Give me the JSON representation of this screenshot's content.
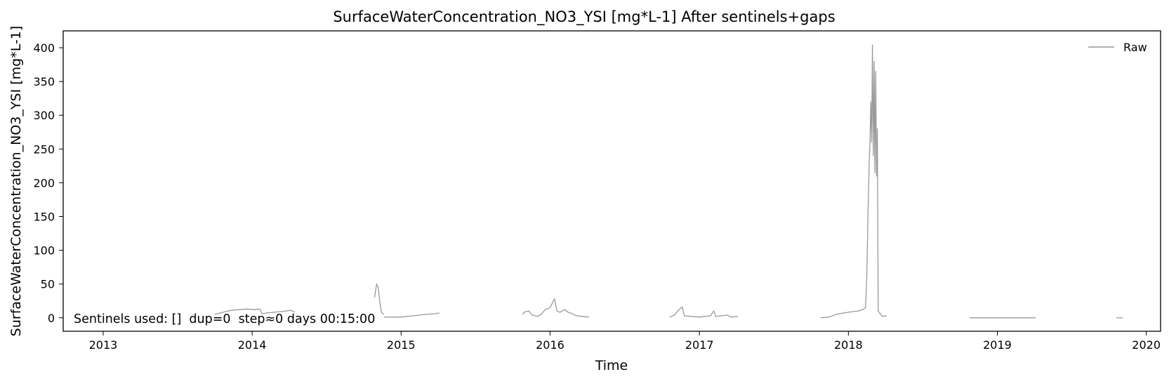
{
  "chart_data": {
    "type": "line",
    "title": "SurfaceWaterConcentration_NO3_YSI [mg*L-1] After sentinels+gaps",
    "xlabel": "Time",
    "ylabel": "SurfaceWaterConcentration_NO3_YSI [mg*L-1]",
    "xlim": [
      "2012-09-25",
      "2020-02-05"
    ],
    "ylim": [
      -20,
      425
    ],
    "xticks": [
      {
        "date": "2013-01-01",
        "label": "2013"
      },
      {
        "date": "2014-01-01",
        "label": "2014"
      },
      {
        "date": "2015-01-01",
        "label": "2015"
      },
      {
        "date": "2016-01-01",
        "label": "2016"
      },
      {
        "date": "2017-01-01",
        "label": "2017"
      },
      {
        "date": "2018-01-01",
        "label": "2018"
      },
      {
        "date": "2019-01-01",
        "label": "2019"
      },
      {
        "date": "2020-01-01",
        "label": "2020"
      }
    ],
    "yticks": [
      0,
      50,
      100,
      150,
      200,
      250,
      300,
      350,
      400
    ],
    "grid": false,
    "legend": {
      "position": "top-right",
      "entries": [
        "Raw"
      ]
    },
    "annotation": "Sentinels used: []  dup=0  step≈0 days 00:15:00",
    "colors": {
      "series": "#999999"
    },
    "series": [
      {
        "name": "Raw",
        "segments": [
          [
            [
              "2013-10-01",
              5
            ],
            [
              "2013-10-20",
              8
            ],
            [
              "2013-11-10",
              11
            ],
            [
              "2013-12-01",
              12
            ],
            [
              "2013-12-20",
              13
            ],
            [
              "2014-01-05",
              12
            ],
            [
              "2014-01-20",
              13
            ],
            [
              "2014-01-25",
              6
            ],
            [
              "2014-02-05",
              7
            ],
            [
              "2014-02-20",
              8
            ],
            [
              "2014-03-10",
              9
            ],
            [
              "2014-03-25",
              10
            ],
            [
              "2014-04-05",
              11
            ],
            [
              "2014-04-15",
              9
            ]
          ],
          [
            [
              "2014-10-28",
              30
            ],
            [
              "2014-11-02",
              50
            ],
            [
              "2014-11-06",
              45
            ],
            [
              "2014-11-10",
              22
            ],
            [
              "2014-11-14",
              8
            ],
            [
              "2014-11-20",
              5
            ]
          ],
          [
            [
              "2014-11-20",
              1
            ],
            [
              "2015-01-01",
              1
            ],
            [
              "2015-02-01",
              3
            ],
            [
              "2015-03-01",
              5
            ],
            [
              "2015-03-25",
              6
            ],
            [
              "2015-04-05",
              7
            ]
          ],
          [
            [
              "2015-10-25",
              5
            ],
            [
              "2015-11-01",
              9
            ],
            [
              "2015-11-10",
              10
            ],
            [
              "2015-11-18",
              4
            ],
            [
              "2015-12-01",
              2
            ],
            [
              "2015-12-10",
              5
            ],
            [
              "2015-12-20",
              12
            ],
            [
              "2016-01-01",
              15
            ],
            [
              "2016-01-12",
              28
            ],
            [
              "2016-01-18",
              10
            ],
            [
              "2016-01-25",
              8
            ],
            [
              "2016-02-05",
              12
            ],
            [
              "2016-02-15",
              8
            ],
            [
              "2016-02-25",
              6
            ],
            [
              "2016-03-05",
              3
            ],
            [
              "2016-03-20",
              2
            ],
            [
              "2016-04-05",
              1
            ]
          ],
          [
            [
              "2016-10-20",
              1
            ],
            [
              "2016-11-01",
              4
            ],
            [
              "2016-11-10",
              11
            ],
            [
              "2016-11-20",
              16
            ],
            [
              "2016-11-25",
              3
            ],
            [
              "2016-12-10",
              2
            ],
            [
              "2017-01-01",
              1
            ],
            [
              "2017-01-15",
              2
            ],
            [
              "2017-01-28",
              3
            ],
            [
              "2017-02-05",
              10
            ],
            [
              "2017-02-10",
              2
            ],
            [
              "2017-02-25",
              3
            ],
            [
              "2017-03-10",
              4
            ],
            [
              "2017-03-20",
              1
            ],
            [
              "2017-04-05",
              2
            ]
          ],
          [
            [
              "2017-10-25",
              0
            ],
            [
              "2017-11-15",
              1
            ],
            [
              "2017-12-01",
              5
            ],
            [
              "2017-12-20",
              7
            ],
            [
              "2018-01-10",
              9
            ],
            [
              "2018-01-25",
              10
            ],
            [
              "2018-02-05",
              12
            ],
            [
              "2018-02-12",
              15
            ],
            [
              "2018-02-15",
              60
            ],
            [
              "2018-02-18",
              150
            ],
            [
              "2018-02-21",
              230
            ],
            [
              "2018-02-23",
              260
            ],
            [
              "2018-02-25",
              320
            ],
            [
              "2018-02-27",
              260
            ],
            [
              "2018-03-01",
              404
            ],
            [
              "2018-03-03",
              240
            ],
            [
              "2018-03-05",
              380
            ],
            [
              "2018-03-07",
              215
            ],
            [
              "2018-03-09",
              365
            ],
            [
              "2018-03-11",
              210
            ],
            [
              "2018-03-13",
              280
            ],
            [
              "2018-03-15",
              10
            ],
            [
              "2018-03-25",
              2
            ],
            [
              "2018-04-05",
              3
            ]
          ],
          [
            [
              "2018-10-25",
              0
            ],
            [
              "2019-04-05",
              0
            ]
          ],
          [
            [
              "2019-10-20",
              0
            ],
            [
              "2019-11-05",
              0
            ]
          ]
        ]
      }
    ]
  }
}
